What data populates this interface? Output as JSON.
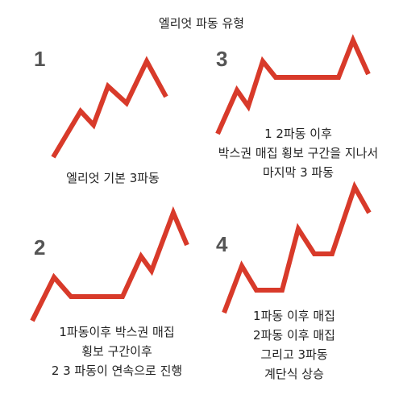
{
  "title": "엘리엇 파동 유형",
  "accent_color": "#d83a2a",
  "panels": [
    {
      "number": "1",
      "caption": [
        "엘리엇 기본 3파동"
      ],
      "pattern": "three waves rising"
    },
    {
      "number": "2",
      "caption": [
        "1파동이후 박스권 매집",
        "횡보 구간이후",
        "2 3 파동이 연속으로 진행"
      ],
      "pattern": "first wave then box-range sideways then waves 2 and 3"
    },
    {
      "number": "3",
      "caption": [
        "1 2파동 이후",
        "박스권 매집 횡보 구간을 지나서",
        "마지막 3 파동"
      ],
      "pattern": "waves 1 and 2 then box-range sideways then final wave 3"
    },
    {
      "number": "4",
      "caption": [
        "1파동 이후 매집",
        "2파동 이후 매집",
        "그리고 3파동",
        "계단식 상승"
      ],
      "pattern": "stepwise rise with accumulation after each wave"
    }
  ]
}
